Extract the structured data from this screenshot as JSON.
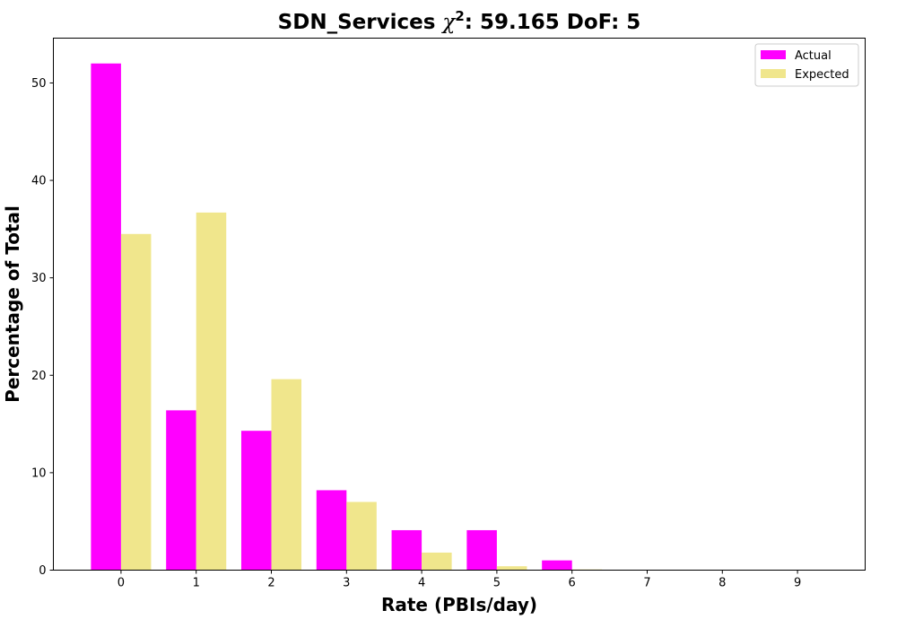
{
  "chart_data": {
    "type": "bar",
    "title": {
      "prefix": "SDN_Services ",
      "symbol": "χ",
      "superscript": "2",
      "suffix": ": 59.165 DoF: 5"
    },
    "xlabel": "Rate (PBIs/day)",
    "ylabel": "Percentage of Total",
    "categories": [
      "0",
      "1",
      "2",
      "3",
      "4",
      "5",
      "6",
      "7",
      "8",
      "9"
    ],
    "xlim": [
      -0.9,
      9.9
    ],
    "ylim": [
      0,
      54.6
    ],
    "yticks": [
      0,
      10,
      20,
      30,
      40,
      50
    ],
    "legend_position": "top-right",
    "grid": false,
    "series": [
      {
        "name": "Actual",
        "color": "#ff00ff",
        "values": [
          52.0,
          16.4,
          14.3,
          8.2,
          4.1,
          4.1,
          1.0,
          0,
          0,
          0
        ]
      },
      {
        "name": "Expected",
        "color": "#f0e68c",
        "values": [
          34.5,
          36.7,
          19.6,
          7.0,
          1.8,
          0.4,
          0.07,
          0.01,
          0,
          0
        ]
      }
    ]
  }
}
